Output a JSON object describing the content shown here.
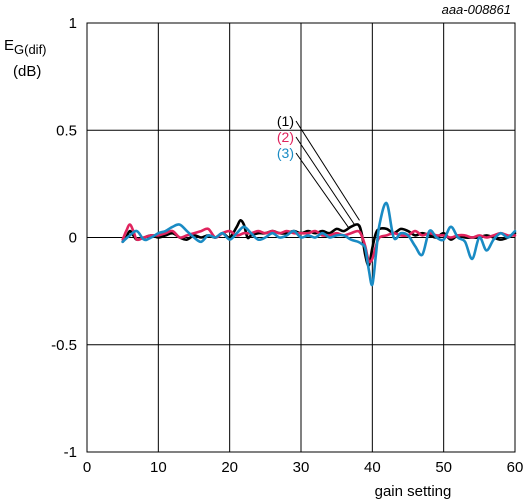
{
  "figure_id": "aaa-008861",
  "chart_data": {
    "type": "line",
    "xlabel": "gain setting",
    "ylabel_main": "E",
    "ylabel_sub": "G(dif)",
    "ylabel_unit": "(dB)",
    "xlim": [
      0,
      60
    ],
    "ylim": [
      -1,
      1
    ],
    "xticks": [
      0,
      10,
      20,
      30,
      40,
      50,
      60
    ],
    "yticks": [
      1,
      0.5,
      0,
      -0.5,
      -1
    ],
    "ytick_labels": [
      "1",
      "0.5",
      "0",
      "-0.5",
      "-1"
    ],
    "grid": true,
    "series": [
      {
        "name": "(1)",
        "color": "#000000",
        "x": [
          5,
          5.5,
          6,
          6.5,
          7,
          8,
          9,
          10,
          11,
          12,
          13,
          14,
          15,
          16,
          17,
          18,
          19,
          20,
          21,
          21.5,
          22,
          22.5,
          23,
          24,
          25,
          26,
          27,
          28,
          29,
          30,
          31,
          32,
          33,
          34,
          35,
          36,
          37,
          38,
          38.5,
          39,
          39.5,
          40,
          40.5,
          41,
          42,
          43,
          44,
          45,
          46,
          47,
          48,
          49,
          50,
          51,
          52,
          53,
          54,
          55,
          56,
          57,
          58,
          59,
          60
        ],
        "y": [
          -0.02,
          0.0,
          0.03,
          0.01,
          -0.01,
          0.0,
          0.01,
          0.0,
          0.01,
          0.02,
          0.0,
          -0.01,
          0.01,
          0.0,
          0.01,
          0.0,
          0.02,
          0.0,
          0.05,
          0.08,
          0.06,
          0.0,
          0.01,
          0.02,
          0.02,
          0.03,
          0.02,
          0.02,
          0.03,
          0.02,
          0.03,
          0.02,
          0.03,
          0.02,
          0.04,
          0.03,
          0.05,
          0.06,
          0.02,
          -0.08,
          -0.13,
          -0.05,
          0.02,
          0.04,
          0.04,
          0.02,
          0.04,
          0.03,
          0.01,
          0.02,
          0.01,
          0.0,
          0.02,
          -0.01,
          0.01,
          0.0,
          0.0,
          0.0,
          0.01,
          0.0,
          -0.01,
          0.0,
          0.02
        ]
      },
      {
        "name": "(2)",
        "color": "#e0245e",
        "x": [
          5,
          5.5,
          6,
          6.5,
          7,
          8,
          9,
          10,
          11,
          12,
          13,
          14,
          15,
          16,
          17,
          18,
          19,
          20,
          21,
          22,
          23,
          24,
          25,
          26,
          27,
          28,
          29,
          30,
          31,
          32,
          33,
          34,
          35,
          36,
          37,
          38,
          38.5,
          39,
          39.5,
          40,
          40.5,
          41,
          42,
          43,
          44,
          45,
          46,
          47,
          48,
          49,
          50,
          51,
          52,
          53,
          54,
          55,
          56,
          57,
          58,
          59,
          60
        ],
        "y": [
          -0.01,
          0.03,
          0.06,
          0.03,
          -0.01,
          0.0,
          0.01,
          0.01,
          0.02,
          0.03,
          0.0,
          0.01,
          0.02,
          0.03,
          0.04,
          0.0,
          0.02,
          0.03,
          0.01,
          0.02,
          0.02,
          0.03,
          0.02,
          0.03,
          0.02,
          0.03,
          0.02,
          0.02,
          0.02,
          0.03,
          0.01,
          0.01,
          0.02,
          0.01,
          0.02,
          0.03,
          0.01,
          -0.04,
          -0.11,
          -0.1,
          -0.04,
          0.0,
          0.01,
          0.02,
          0.01,
          0.01,
          0.03,
          0.01,
          0.02,
          0.01,
          0.01,
          0.0,
          0.01,
          0.01,
          0.0,
          0.01,
          0.0,
          0.01,
          0.02,
          0.01,
          0.01
        ]
      },
      {
        "name": "(3)",
        "color": "#1a8bc4",
        "x": [
          5,
          6,
          7,
          8,
          9,
          10,
          11,
          12,
          13,
          14,
          15,
          16,
          17,
          18,
          19,
          20,
          21,
          22,
          23,
          24,
          25,
          26,
          27,
          28,
          29,
          30,
          31,
          32,
          33,
          34,
          35,
          36,
          37,
          38,
          38.5,
          39,
          39.5,
          40,
          40.5,
          41,
          42,
          43,
          44,
          45,
          46,
          47,
          48,
          49,
          50,
          51,
          52,
          53,
          54,
          55,
          56,
          57,
          58,
          59,
          60
        ],
        "y": [
          -0.02,
          0.01,
          0.03,
          -0.01,
          0.0,
          0.02,
          0.03,
          0.05,
          0.06,
          0.03,
          0.0,
          -0.02,
          0.01,
          0.0,
          0.02,
          -0.01,
          0.02,
          0.05,
          0.02,
          -0.01,
          0.0,
          0.02,
          0.0,
          0.01,
          0.03,
          0.0,
          0.01,
          0.0,
          0.02,
          0.0,
          0.01,
          0.01,
          -0.01,
          -0.02,
          -0.03,
          -0.05,
          -0.15,
          -0.22,
          -0.08,
          0.06,
          0.16,
          0.0,
          0.02,
          0.01,
          -0.04,
          -0.08,
          0.03,
          0.0,
          -0.01,
          0.05,
          0.0,
          -0.02,
          -0.1,
          0.0,
          -0.06,
          -0.01,
          0.02,
          0.0,
          0.03
        ]
      }
    ]
  }
}
